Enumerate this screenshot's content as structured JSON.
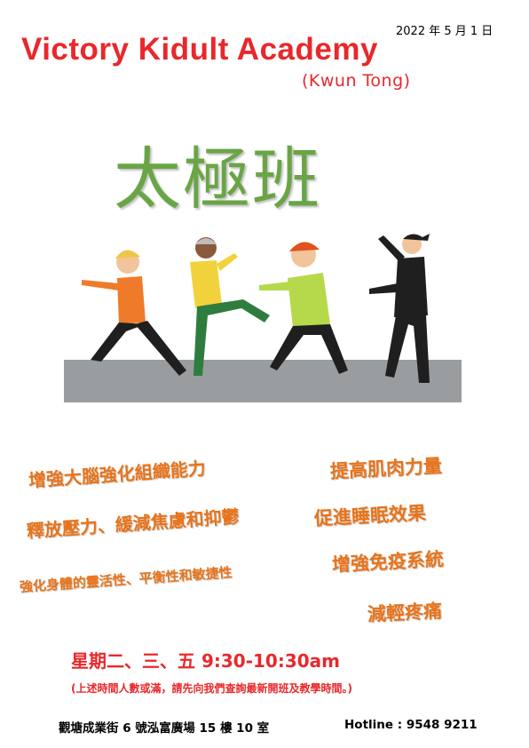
{
  "date": "2022 年 5 月 1 日",
  "brand": {
    "name": "Victory Kidult Academy",
    "branch": "(Kwun Tong)"
  },
  "title": "太極班",
  "benefits": [
    "增強大腦強化組織能力",
    "釋放壓力、緩減焦慮和抑鬱",
    "強化身體的靈活性、平衡性和敏捷性",
    "提高肌肉力量",
    "促進睡眠效果",
    "增強免疫系統",
    "減輕疼痛"
  ],
  "schedule": "星期二、三、五 9:30-10:30am",
  "note": "(上述時間人數或滿，請先向我們查詢最新開班及教學時間。)",
  "address": "觀塘成業街 6 號泓富廣場 15 樓 10 室",
  "hotline": "Hotline : 9548 9211",
  "colors": {
    "brand_red": "#e8282b",
    "title_green": "#6aa545",
    "benefit_orange": "#e8731a"
  }
}
